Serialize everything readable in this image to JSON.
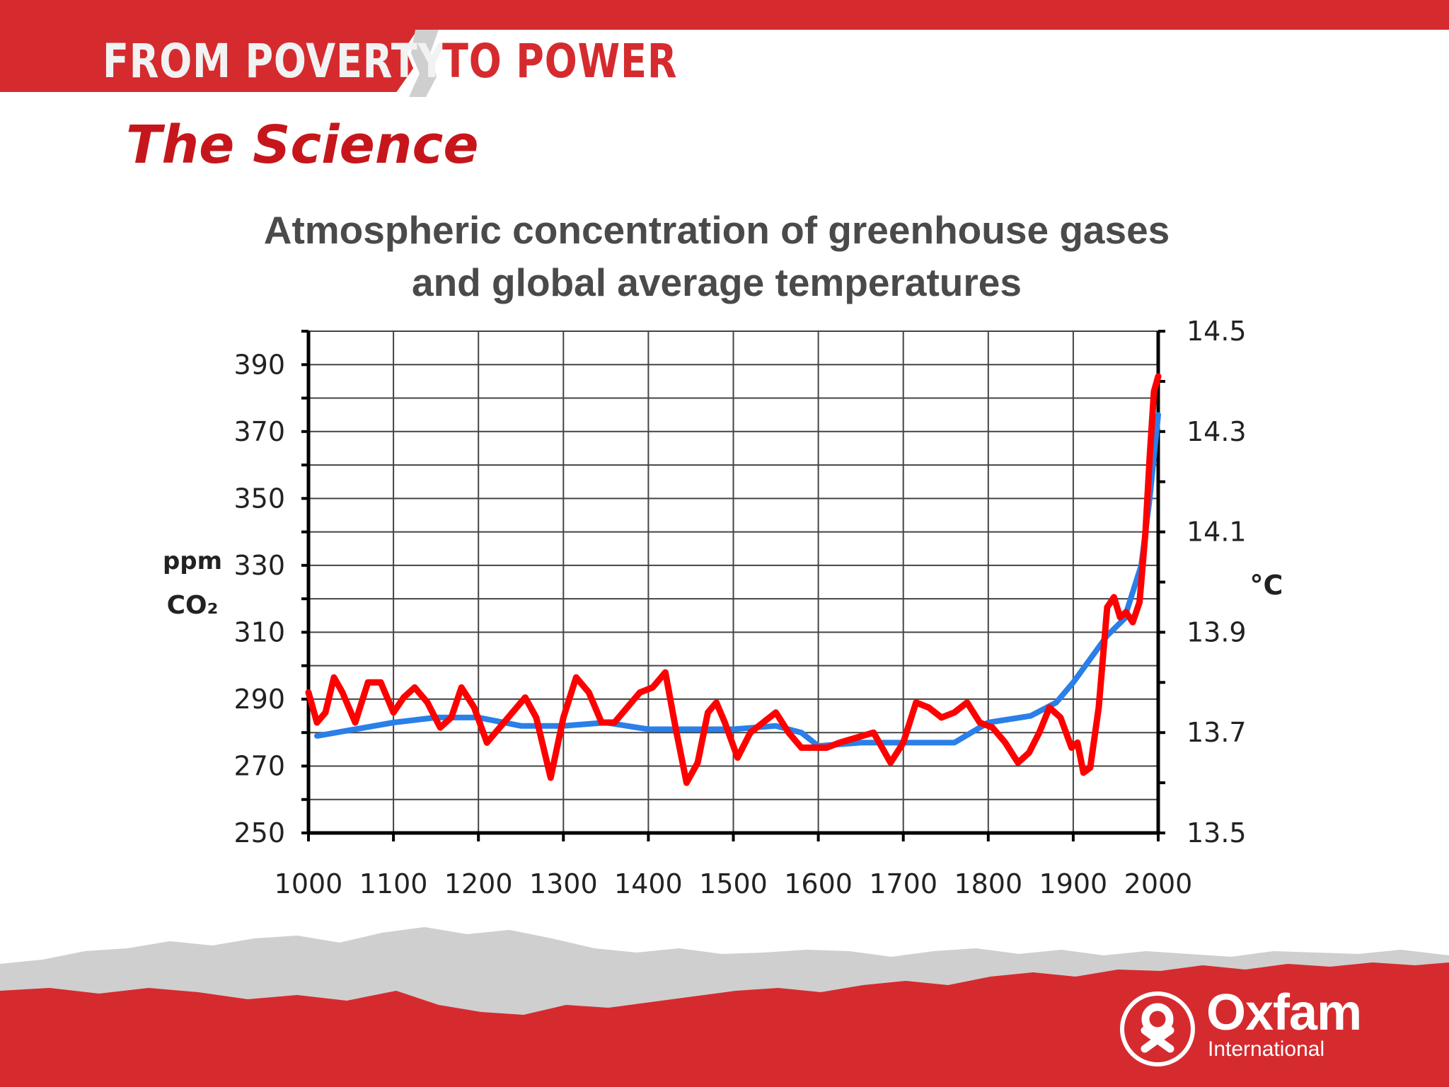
{
  "header": {
    "brand_part1": "FROM POVERTY",
    "brand_part2": "TO POWER"
  },
  "section_title": "The Science",
  "chart_title_line1": "Atmospheric concentration of greenhouse gases",
  "chart_title_line2": "and global average temperatures",
  "footer": {
    "logo_word": "Oxfam",
    "logo_sub": "International",
    "logo_icon": "oxfam-figure-icon"
  },
  "colors": {
    "brand_red": "#d52b2f",
    "co2_series": "#2a7fe8",
    "temperature_series": "#ff0000"
  },
  "chart_data": {
    "type": "line",
    "xlabel": "",
    "ylabel_left": "ppm CO₂",
    "ylabel_right": "°C",
    "xlim": [
      1000,
      2000
    ],
    "ylim_left": [
      250,
      400
    ],
    "ylim_right": [
      13.5,
      14.5
    ],
    "x_ticks": [
      1000,
      1100,
      1200,
      1300,
      1400,
      1500,
      1600,
      1700,
      1800,
      1900,
      2000
    ],
    "y_left_ticks": [
      250,
      270,
      290,
      310,
      330,
      350,
      370,
      390
    ],
    "y_right_ticks": [
      13.5,
      13.7,
      13.9,
      14.1,
      14.3,
      14.5
    ],
    "grid": true,
    "series": [
      {
        "axis": "left",
        "color": "#2a7fe8",
        "x": [
          1010,
          1100,
          1150,
          1200,
          1250,
          1300,
          1350,
          1400,
          1450,
          1500,
          1550,
          1580,
          1600,
          1650,
          1700,
          1760,
          1800,
          1850,
          1880,
          1900,
          1920,
          1940,
          1960,
          1980,
          1990,
          2000
        ],
        "y": [
          279,
          283,
          284.5,
          284.5,
          282,
          282,
          283,
          281,
          281,
          281,
          282,
          280,
          276,
          277,
          277,
          277,
          283,
          285,
          289,
          295,
          302,
          309,
          314,
          330,
          350,
          375
        ]
      },
      {
        "axis": "right",
        "color": "#ff0000",
        "x": [
          1000,
          1010,
          1020,
          1030,
          1040,
          1055,
          1070,
          1085,
          1100,
          1112,
          1125,
          1140,
          1155,
          1168,
          1180,
          1195,
          1210,
          1225,
          1240,
          1255,
          1268,
          1285,
          1300,
          1315,
          1330,
          1345,
          1360,
          1375,
          1390,
          1405,
          1420,
          1432,
          1445,
          1458,
          1470,
          1480,
          1490,
          1505,
          1520,
          1535,
          1550,
          1565,
          1580,
          1595,
          1610,
          1625,
          1645,
          1665,
          1685,
          1700,
          1715,
          1730,
          1745,
          1760,
          1775,
          1790,
          1805,
          1820,
          1835,
          1848,
          1860,
          1872,
          1885,
          1898,
          1905,
          1912,
          1920,
          1930,
          1940,
          1948,
          1955,
          1962,
          1970,
          1978,
          1985,
          1990,
          1995,
          2000
        ],
        "y": [
          13.78,
          13.72,
          13.74,
          13.81,
          13.78,
          13.72,
          13.8,
          13.8,
          13.74,
          13.77,
          13.79,
          13.76,
          13.71,
          13.73,
          13.79,
          13.75,
          13.68,
          13.71,
          13.74,
          13.77,
          13.73,
          13.61,
          13.73,
          13.81,
          13.78,
          13.72,
          13.72,
          13.75,
          13.78,
          13.79,
          13.82,
          13.71,
          13.6,
          13.64,
          13.74,
          13.76,
          13.72,
          13.65,
          13.7,
          13.72,
          13.74,
          13.7,
          13.67,
          13.67,
          13.67,
          13.68,
          13.69,
          13.7,
          13.64,
          13.68,
          13.76,
          13.75,
          13.73,
          13.74,
          13.76,
          13.72,
          13.71,
          13.68,
          13.64,
          13.66,
          13.7,
          13.75,
          13.73,
          13.67,
          13.68,
          13.62,
          13.63,
          13.75,
          13.95,
          13.97,
          13.93,
          13.94,
          13.92,
          13.96,
          14.1,
          14.25,
          14.38,
          14.41
        ]
      }
    ]
  }
}
